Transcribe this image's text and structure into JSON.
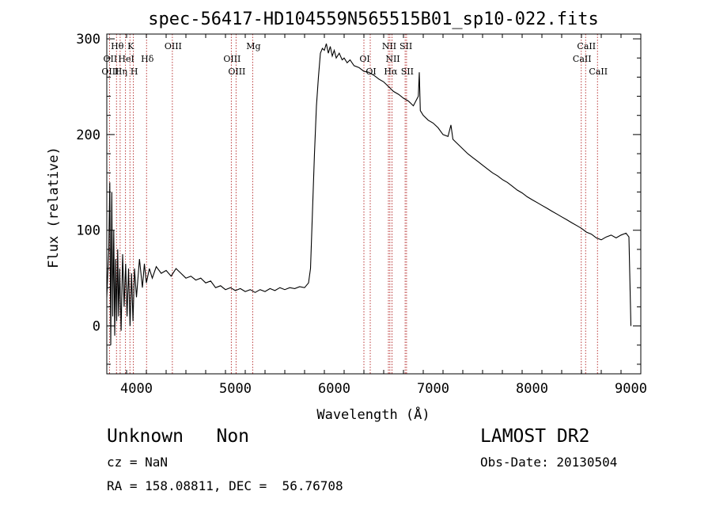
{
  "chart_data": {
    "type": "line",
    "title": "spec-56417-HD104559N565515B01_sp10-022.fits",
    "xlabel": "Wavelength (Å)",
    "ylabel": "Flux (relative)",
    "xlim": [
      3700,
      9100
    ],
    "ylim": [
      -50,
      305
    ],
    "x_ticks": [
      4000,
      5000,
      6000,
      7000,
      8000,
      9000
    ],
    "y_ticks": [
      0,
      100,
      200,
      300
    ],
    "series": [
      {
        "values_xy": [
          [
            3700,
            30
          ],
          [
            3720,
            80
          ],
          [
            3730,
            150
          ],
          [
            3740,
            -20
          ],
          [
            3750,
            140
          ],
          [
            3760,
            10
          ],
          [
            3770,
            100
          ],
          [
            3780,
            -10
          ],
          [
            3790,
            70
          ],
          [
            3800,
            5
          ],
          [
            3810,
            80
          ],
          [
            3820,
            10
          ],
          [
            3830,
            60
          ],
          [
            3845,
            -5
          ],
          [
            3860,
            75
          ],
          [
            3875,
            20
          ],
          [
            3890,
            65
          ],
          [
            3905,
            10
          ],
          [
            3920,
            60
          ],
          [
            3935,
            0
          ],
          [
            3950,
            55
          ],
          [
            3965,
            5
          ],
          [
            3980,
            60
          ],
          [
            4000,
            30
          ],
          [
            4030,
            70
          ],
          [
            4060,
            40
          ],
          [
            4080,
            65
          ],
          [
            4100,
            45
          ],
          [
            4130,
            60
          ],
          [
            4160,
            50
          ],
          [
            4200,
            62
          ],
          [
            4250,
            55
          ],
          [
            4300,
            58
          ],
          [
            4350,
            52
          ],
          [
            4400,
            60
          ],
          [
            4450,
            55
          ],
          [
            4500,
            50
          ],
          [
            4550,
            52
          ],
          [
            4600,
            48
          ],
          [
            4650,
            50
          ],
          [
            4700,
            45
          ],
          [
            4750,
            47
          ],
          [
            4800,
            40
          ],
          [
            4850,
            42
          ],
          [
            4900,
            38
          ],
          [
            4950,
            40
          ],
          [
            5000,
            37
          ],
          [
            5050,
            39
          ],
          [
            5100,
            36
          ],
          [
            5150,
            38
          ],
          [
            5200,
            35
          ],
          [
            5250,
            38
          ],
          [
            5300,
            36
          ],
          [
            5350,
            39
          ],
          [
            5400,
            37
          ],
          [
            5450,
            40
          ],
          [
            5500,
            38
          ],
          [
            5550,
            40
          ],
          [
            5600,
            39
          ],
          [
            5650,
            41
          ],
          [
            5700,
            40
          ],
          [
            5740,
            45
          ],
          [
            5760,
            60
          ],
          [
            5780,
            120
          ],
          [
            5800,
            180
          ],
          [
            5820,
            230
          ],
          [
            5840,
            260
          ],
          [
            5860,
            285
          ],
          [
            5880,
            290
          ],
          [
            5900,
            288
          ],
          [
            5920,
            295
          ],
          [
            5940,
            285
          ],
          [
            5960,
            292
          ],
          [
            5980,
            282
          ],
          [
            6000,
            288
          ],
          [
            6020,
            280
          ],
          [
            6050,
            285
          ],
          [
            6080,
            278
          ],
          [
            6100,
            280
          ],
          [
            6130,
            275
          ],
          [
            6160,
            278
          ],
          [
            6200,
            272
          ],
          [
            6250,
            270
          ],
          [
            6300,
            266
          ],
          [
            6350,
            265
          ],
          [
            6400,
            262
          ],
          [
            6450,
            258
          ],
          [
            6500,
            255
          ],
          [
            6550,
            250
          ],
          [
            6600,
            245
          ],
          [
            6650,
            242
          ],
          [
            6700,
            238
          ],
          [
            6750,
            235
          ],
          [
            6800,
            230
          ],
          [
            6850,
            240
          ],
          [
            6860,
            265
          ],
          [
            6870,
            225
          ],
          [
            6900,
            220
          ],
          [
            6950,
            215
          ],
          [
            7000,
            212
          ],
          [
            7050,
            207
          ],
          [
            7100,
            200
          ],
          [
            7150,
            198
          ],
          [
            7180,
            210
          ],
          [
            7200,
            195
          ],
          [
            7250,
            190
          ],
          [
            7300,
            185
          ],
          [
            7350,
            180
          ],
          [
            7400,
            176
          ],
          [
            7450,
            172
          ],
          [
            7500,
            168
          ],
          [
            7550,
            164
          ],
          [
            7600,
            160
          ],
          [
            7650,
            157
          ],
          [
            7700,
            153
          ],
          [
            7750,
            150
          ],
          [
            7800,
            146
          ],
          [
            7850,
            142
          ],
          [
            7900,
            139
          ],
          [
            7950,
            135
          ],
          [
            8000,
            132
          ],
          [
            8050,
            129
          ],
          [
            8100,
            126
          ],
          [
            8150,
            123
          ],
          [
            8200,
            120
          ],
          [
            8250,
            117
          ],
          [
            8300,
            114
          ],
          [
            8350,
            111
          ],
          [
            8400,
            108
          ],
          [
            8450,
            105
          ],
          [
            8500,
            102
          ],
          [
            8550,
            98
          ],
          [
            8600,
            96
          ],
          [
            8650,
            92
          ],
          [
            8700,
            90
          ],
          [
            8750,
            93
          ],
          [
            8800,
            95
          ],
          [
            8850,
            92
          ],
          [
            8900,
            95
          ],
          [
            8950,
            97
          ],
          [
            8980,
            93
          ],
          [
            9000,
            0
          ]
        ]
      }
    ],
    "spectral_lines": [
      {
        "label": "Hθ",
        "x": 3798,
        "row": 0
      },
      {
        "label": "K",
        "x": 3934,
        "row": 0
      },
      {
        "label": "OIII",
        "x": 4363,
        "row": 0
      },
      {
        "label": "Mg",
        "x": 5175,
        "row": 0
      },
      {
        "label": "NII",
        "x": 6548,
        "row": 0
      },
      {
        "label": "SII",
        "x": 6717,
        "row": 0
      },
      {
        "label": "CaII",
        "x": 8542,
        "row": 0
      },
      {
        "label": "OII",
        "x": 3727,
        "row": 1
      },
      {
        "label": "HeI",
        "x": 3889,
        "row": 1
      },
      {
        "label": "Hδ",
        "x": 4102,
        "row": 1
      },
      {
        "label": "OIII",
        "x": 4959,
        "row": 1
      },
      {
        "label": "OI",
        "x": 6300,
        "row": 1
      },
      {
        "label": "NII",
        "x": 6584,
        "row": 1
      },
      {
        "label": "CaII",
        "x": 8498,
        "row": 1
      },
      {
        "label": "OIII",
        "x": 3727,
        "row": 2
      },
      {
        "label": "Hη",
        "x": 3835,
        "row": 2
      },
      {
        "label": "H",
        "x": 3969,
        "row": 2
      },
      {
        "label": "OIII",
        "x": 5007,
        "row": 2
      },
      {
        "label": "OI",
        "x": 6364,
        "row": 2
      },
      {
        "label": "Hα",
        "x": 6563,
        "row": 2
      },
      {
        "label": "SII",
        "x": 6731,
        "row": 2
      },
      {
        "label": "CaII",
        "x": 8662,
        "row": 2
      }
    ]
  },
  "footer": {
    "class_label": "Unknown   Non",
    "survey": "LAMOST DR2",
    "redshift": "cz = NaN",
    "obs_date": "Obs-Date: 20130504",
    "coords": "RA = 158.08811, DEC =  56.76708"
  },
  "colors": {
    "spectrum": "#000000",
    "line_marker": "#b22222"
  }
}
